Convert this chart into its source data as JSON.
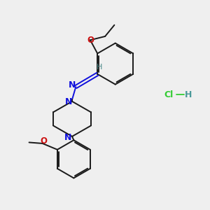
{
  "background_color": "#efefef",
  "bond_color": "#1a1a1a",
  "nitrogen_color": "#1010dd",
  "oxygen_color": "#cc1111",
  "cl_color": "#33cc33",
  "h_imine_color": "#4a8888",
  "h_hcl_color": "#4a9999",
  "figsize": [
    3.0,
    3.0
  ],
  "dpi": 100,
  "xlim": [
    0,
    10
  ],
  "ylim": [
    0,
    10
  ]
}
